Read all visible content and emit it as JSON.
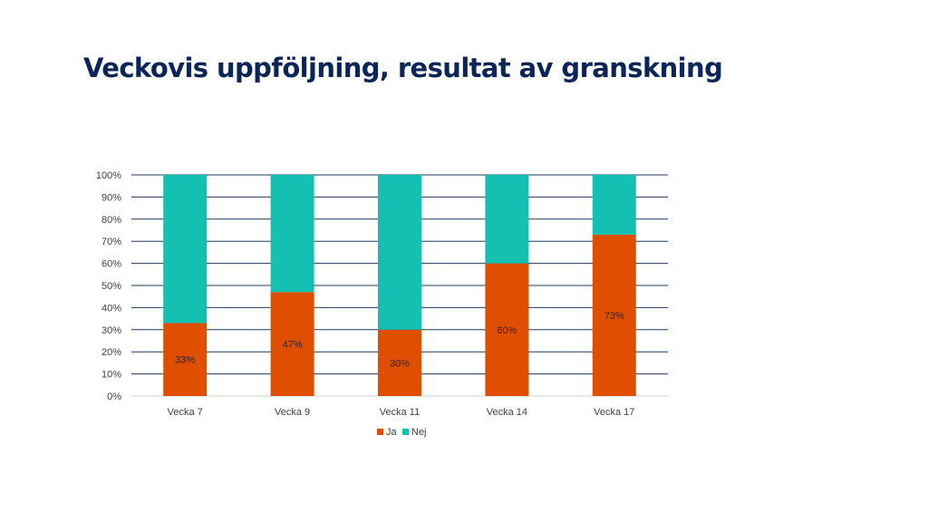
{
  "slide": {
    "title": "Veckovis uppföljning, resultat av granskning"
  },
  "chart_data": {
    "type": "bar",
    "stacked": true,
    "percent_stacked": true,
    "categories": [
      "Vecka 7",
      "Vecka 9",
      "Vecka 11",
      "Vecka 14",
      "Vecka 17"
    ],
    "series": [
      {
        "name": "Ja",
        "values": [
          33,
          47,
          30,
          60,
          73
        ],
        "color": "#e04e00",
        "data_labels": [
          "33%",
          "47%",
          "30%",
          "60%",
          "73%"
        ]
      },
      {
        "name": "Nej",
        "values": [
          67,
          53,
          70,
          40,
          27
        ],
        "color": "#14c0b2"
      }
    ],
    "ylim": [
      0,
      100
    ],
    "y_ticks": [
      "0%",
      "10%",
      "20%",
      "30%",
      "40%",
      "50%",
      "60%",
      "70%",
      "80%",
      "90%",
      "100%"
    ],
    "grid": true,
    "gridline_color": "#1f3a5c",
    "legend": "bottom",
    "title": "",
    "xlabel": "",
    "ylabel": ""
  }
}
